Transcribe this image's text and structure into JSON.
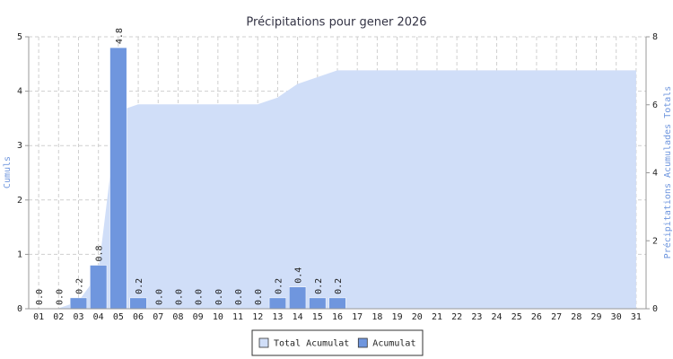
{
  "chart_data": {
    "type": "bar",
    "title": "Précipitations pour gener 2026",
    "y_label": "Cumuls",
    "y2_label": "Précipitations Acumulades Totals",
    "categories": [
      "01",
      "02",
      "03",
      "04",
      "05",
      "06",
      "07",
      "08",
      "09",
      "10",
      "11",
      "12",
      "13",
      "14",
      "15",
      "16",
      "17",
      "18",
      "19",
      "20",
      "21",
      "22",
      "23",
      "24",
      "25",
      "26",
      "27",
      "28",
      "29",
      "30",
      "31"
    ],
    "series": [
      {
        "name": "Total Acumulat",
        "type": "area",
        "axis": "y2",
        "color": "#d0def8",
        "values": [
          0,
          0,
          0.2,
          1.0,
          5.8,
          6.0,
          6.0,
          6.0,
          6.0,
          6.0,
          6.0,
          6.0,
          6.2,
          6.6,
          6.8,
          7.0,
          7.0,
          7.0,
          7.0,
          7.0,
          7.0,
          7.0,
          7.0,
          7.0,
          7.0,
          7.0,
          7.0,
          7.0,
          7.0,
          7.0,
          7.0
        ]
      },
      {
        "name": "Acumulat",
        "type": "bar",
        "color": "#6f96de",
        "values": [
          0,
          0,
          0.2,
          0.8,
          4.8,
          0.2,
          0,
          0,
          0,
          0,
          0,
          0,
          0.2,
          0.4,
          0.2,
          0.2,
          null,
          null,
          null,
          null,
          null,
          null,
          null,
          null,
          null,
          null,
          null,
          null,
          null,
          null,
          null
        ],
        "value_labels": [
          "0.0",
          "0.0",
          "0.2",
          "0.8",
          "4.8",
          "0.2",
          "0.0",
          "0.0",
          "0.0",
          "0.0",
          "0.0",
          "0.0",
          "0.2",
          "0.4",
          "0.2",
          "0.2",
          null,
          null,
          null,
          null,
          null,
          null,
          null,
          null,
          null,
          null,
          null,
          null,
          null,
          null,
          null
        ]
      }
    ],
    "ylim": [
      0,
      5
    ],
    "yticks": [
      0,
      1,
      2,
      3,
      4,
      5
    ],
    "y2lim": [
      0,
      8
    ],
    "y2ticks": [
      0,
      2,
      4,
      6,
      8
    ],
    "grid": true
  }
}
